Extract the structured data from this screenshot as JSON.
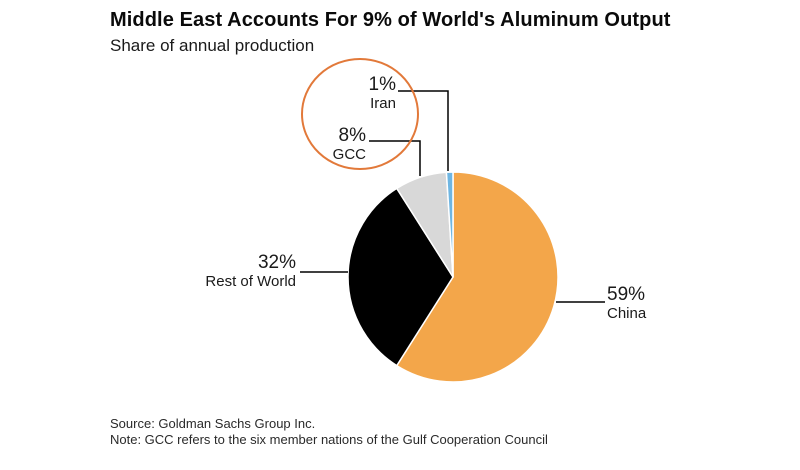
{
  "header": {
    "title": "Middle East Accounts For 9% of World's Aluminum Output",
    "subtitle": "Share of annual production"
  },
  "footer": {
    "source": "Source: Goldman Sachs Group Inc.",
    "note": "Note: GCC refers to the six member nations of the Gulf Cooperation Council"
  },
  "chart_data": {
    "type": "pie",
    "title": "Middle East Accounts For 9% of World's Aluminum Output",
    "subtitle": "Share of annual production",
    "unit": "percent of annual production",
    "start_angle_deg": -90,
    "direction": "clockwise",
    "slices": [
      {
        "label": "China",
        "value": 59,
        "display": "59%",
        "color": "#F3A64A"
      },
      {
        "label": "Rest of World",
        "value": 32,
        "display": "32%",
        "color": "#000000"
      },
      {
        "label": "GCC",
        "value": 8,
        "display": "8%",
        "color": "#D8D8D8"
      },
      {
        "label": "Iran",
        "value": 1,
        "display": "1%",
        "color": "#6FB6E2"
      }
    ],
    "annotation": {
      "shape": "ellipse",
      "color": "#E2793A",
      "highlights": "Middle East slices (GCC + Iran)"
    },
    "connector_color": "#000000",
    "legend_position": "callout-labels",
    "grid": false
  }
}
